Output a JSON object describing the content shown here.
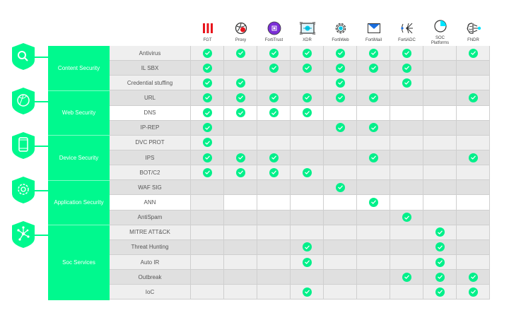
{
  "colors": {
    "accent": "#00f98e",
    "check": "#00f08a",
    "row_light": "#efefef",
    "row_dark": "#e0e0e0"
  },
  "products": [
    {
      "name": "FGT",
      "icon": "fgt-bars-icon"
    },
    {
      "name": "Proxy",
      "icon": "proxy-globe-icon"
    },
    {
      "name": "FortiTrust",
      "icon": "fortitrust-chip-icon"
    },
    {
      "name": "XDR",
      "icon": "xdr-monitor-icon"
    },
    {
      "name": "FortiWeb",
      "icon": "fortiweb-gear-icon"
    },
    {
      "name": "FortiMail",
      "icon": "fortimail-envelope-icon"
    },
    {
      "name": "FortiADC",
      "icon": "fortiadc-network-icon"
    },
    {
      "name": "SOC Platforms",
      "icon": "soc-pie-icon"
    },
    {
      "name": "FNDR",
      "icon": "fndr-brain-icon"
    }
  ],
  "groups": [
    {
      "label": "Content Security",
      "icon": "search-icon",
      "rows": 3
    },
    {
      "label": "Web Security",
      "icon": "globe-icon",
      "rows": 3
    },
    {
      "label": "Device Security",
      "icon": "mobile-device-icon",
      "rows": 3
    },
    {
      "label": "Application Security",
      "icon": "gear-icon",
      "rows": 3
    },
    {
      "label": "Soc Services",
      "icon": "network-hub-icon",
      "rows": 5
    }
  ],
  "rows": [
    {
      "label": "Antivirus",
      "checks": [
        1,
        1,
        1,
        1,
        1,
        1,
        1,
        0,
        1
      ]
    },
    {
      "label": "IL SBX",
      "checks": [
        1,
        0,
        1,
        1,
        1,
        1,
        1,
        0,
        0
      ]
    },
    {
      "label": "Credential stuffing",
      "checks": [
        1,
        1,
        0,
        0,
        1,
        0,
        1,
        0,
        0
      ]
    },
    {
      "label": "URL",
      "checks": [
        1,
        1,
        1,
        1,
        1,
        1,
        0,
        0,
        1
      ]
    },
    {
      "label": "DNS",
      "checks": [
        1,
        1,
        1,
        1,
        0,
        0,
        0,
        0,
        0
      ],
      "white": true
    },
    {
      "label": "IP-REP",
      "checks": [
        1,
        0,
        0,
        0,
        1,
        1,
        0,
        0,
        0
      ]
    },
    {
      "label": "DVC PROT",
      "checks": [
        1,
        0,
        0,
        0,
        0,
        0,
        0,
        0,
        0
      ]
    },
    {
      "label": "IPS",
      "checks": [
        1,
        1,
        1,
        0,
        0,
        1,
        0,
        0,
        1
      ]
    },
    {
      "label": "BOT/C2",
      "checks": [
        1,
        1,
        1,
        1,
        0,
        0,
        0,
        0,
        0
      ]
    },
    {
      "label": "WAF SIG",
      "checks": [
        0,
        0,
        0,
        0,
        1,
        0,
        0,
        0,
        0
      ]
    },
    {
      "label": "ANN",
      "checks": [
        0,
        0,
        0,
        0,
        0,
        1,
        0,
        0,
        0
      ],
      "white": true
    },
    {
      "label": "AntiSpam",
      "checks": [
        0,
        0,
        0,
        0,
        0,
        0,
        1,
        0,
        0
      ]
    },
    {
      "label": "MITRE ATT&CK",
      "checks": [
        0,
        0,
        0,
        0,
        0,
        0,
        0,
        1,
        0
      ]
    },
    {
      "label": "Threat Hunting",
      "checks": [
        0,
        0,
        0,
        1,
        0,
        0,
        0,
        1,
        0
      ]
    },
    {
      "label": "Auto IR",
      "checks": [
        0,
        0,
        0,
        1,
        0,
        0,
        0,
        1,
        0
      ]
    },
    {
      "label": "Outbreak",
      "checks": [
        0,
        0,
        0,
        0,
        0,
        0,
        1,
        1,
        1
      ]
    },
    {
      "label": "IoC",
      "checks": [
        0,
        0,
        0,
        1,
        0,
        0,
        0,
        1,
        1
      ]
    }
  ]
}
